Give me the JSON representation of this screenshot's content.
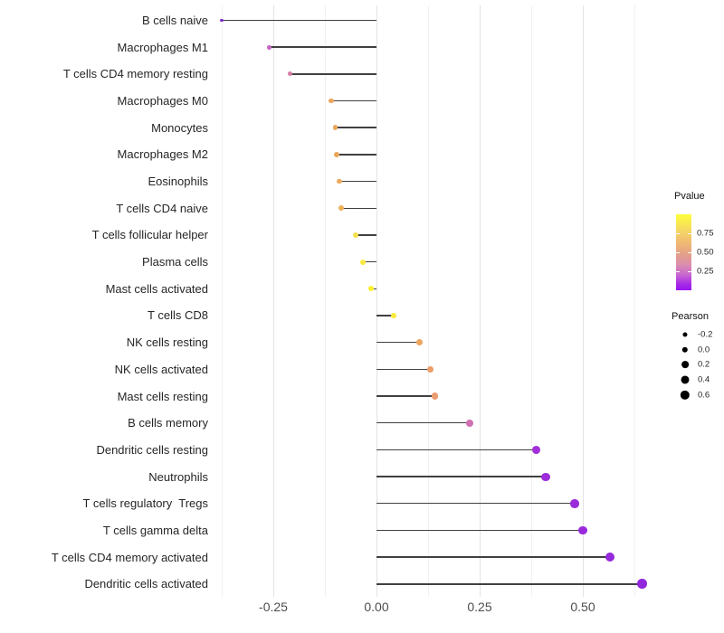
{
  "chart_data": {
    "type": "lollipop",
    "orientation": "horizontal",
    "title": "",
    "xlabel": "",
    "ylabel": "",
    "grid": "on",
    "background": "#ffffff",
    "stem_color": "#404040",
    "xlim": [
      -0.43,
      0.69
    ],
    "x_major_ticks": [
      -0.25,
      0.0,
      0.25,
      0.5
    ],
    "x_tick_labels": [
      "-0.25",
      "0.00",
      "0.25",
      "0.50"
    ],
    "x_minor_ticks": [
      -0.375,
      -0.125,
      0.125,
      0.375,
      0.625
    ],
    "rows": [
      {
        "label": "B cells naive",
        "pearson": -0.375,
        "pvalue": 0.05,
        "color": "#7F2CCB"
      },
      {
        "label": "Macrophages M1",
        "pearson": -0.26,
        "pvalue": 0.25,
        "color": "#C669C6"
      },
      {
        "label": "T cells CD4 memory resting",
        "pearson": -0.21,
        "pvalue": 0.35,
        "color": "#D37CA6"
      },
      {
        "label": "Macrophages M0",
        "pearson": -0.11,
        "pvalue": 0.62,
        "color": "#EBA65E"
      },
      {
        "label": "Monocytes",
        "pearson": -0.1,
        "pvalue": 0.62,
        "color": "#EBA65E"
      },
      {
        "label": "Macrophages M2",
        "pearson": -0.096,
        "pvalue": 0.63,
        "color": "#EBA85E"
      },
      {
        "label": "Eosinophils",
        "pearson": -0.09,
        "pvalue": 0.65,
        "color": "#ECAB5C"
      },
      {
        "label": "T cells CD4 naive",
        "pearson": -0.086,
        "pvalue": 0.68,
        "color": "#EDB15A"
      },
      {
        "label": "T cells follicular helper",
        "pearson": -0.051,
        "pvalue": 0.82,
        "color": "#F5DF4D"
      },
      {
        "label": "Plasma cells",
        "pearson": -0.033,
        "pvalue": 0.88,
        "color": "#F9E940"
      },
      {
        "label": "Mast cells activated",
        "pearson": -0.013,
        "pvalue": 0.97,
        "color": "#FCF02F"
      },
      {
        "label": "T cells CD8",
        "pearson": 0.042,
        "pvalue": 0.9,
        "color": "#FAEA3C"
      },
      {
        "label": "NK cells resting",
        "pearson": 0.105,
        "pvalue": 0.63,
        "color": "#EEA55E"
      },
      {
        "label": "NK cells activated",
        "pearson": 0.131,
        "pvalue": 0.55,
        "color": "#EC9D68"
      },
      {
        "label": "Mast cells resting",
        "pearson": 0.141,
        "pvalue": 0.52,
        "color": "#EB9C70"
      },
      {
        "label": "B cells memory",
        "pearson": 0.226,
        "pvalue": 0.3,
        "color": "#D06FB3"
      },
      {
        "label": "Dendritic cells resting",
        "pearson": 0.388,
        "pvalue": 0.06,
        "color": "#A22FD9"
      },
      {
        "label": "Neutrophils",
        "pearson": 0.41,
        "pvalue": 0.05,
        "color": "#9D2CDA"
      },
      {
        "label": "T cells regulatory  Tregs",
        "pearson": 0.48,
        "pvalue": 0.04,
        "color": "#992BDA"
      },
      {
        "label": "T cells gamma delta",
        "pearson": 0.5,
        "pvalue": 0.04,
        "color": "#982ADB"
      },
      {
        "label": "T cells CD4 memory activated",
        "pearson": 0.565,
        "pvalue": 0.02,
        "color": "#9529DC"
      },
      {
        "label": "Dendritic cells activated",
        "pearson": 0.643,
        "pvalue": 0.02,
        "color": "#9327DD"
      }
    ],
    "legends": {
      "pvalue": {
        "title": "Pvalue",
        "tick_values": [
          0.75,
          0.5,
          0.25
        ],
        "tick_labels": [
          "0.75",
          "0.50",
          "0.25"
        ],
        "range": [
          0,
          1
        ],
        "gradient_stops": [
          {
            "color": "#FDFE39",
            "pos": 0
          },
          {
            "color": "#F6D963",
            "pos": 20
          },
          {
            "color": "#EFB873",
            "pos": 38
          },
          {
            "color": "#E5A187",
            "pos": 52
          },
          {
            "color": "#DC8EAD",
            "pos": 66
          },
          {
            "color": "#C766D1",
            "pos": 80
          },
          {
            "color": "#A62AE7",
            "pos": 92
          },
          {
            "color": "#9714F0",
            "pos": 100
          }
        ]
      },
      "pearson": {
        "title": "Pearson",
        "items": [
          {
            "label": "-0.2",
            "value": -0.2
          },
          {
            "label": "0.0",
            "value": 0.0
          },
          {
            "label": "0.2",
            "value": 0.2
          },
          {
            "label": "0.4",
            "value": 0.4
          },
          {
            "label": "0.6",
            "value": 0.6
          }
        ],
        "dot_color": "#000000"
      }
    }
  }
}
